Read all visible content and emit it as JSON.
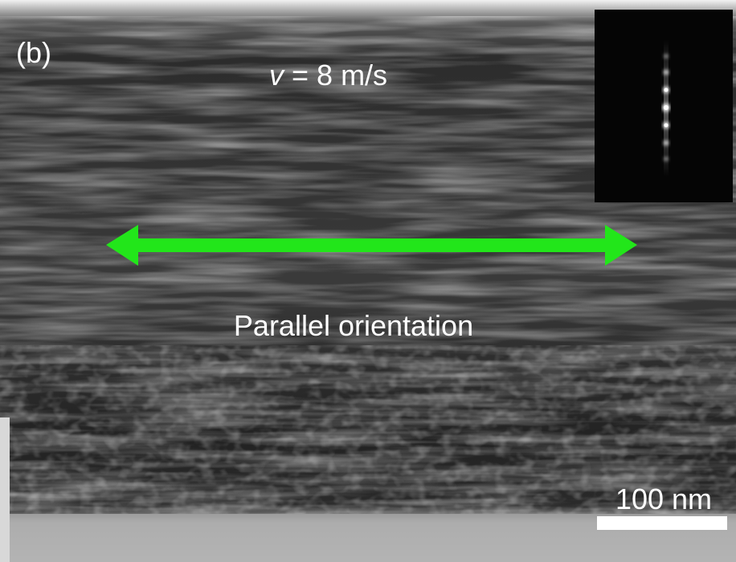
{
  "panel_label": "(b)",
  "velocity_label": {
    "variable": "v",
    "text": "= 8 m/s"
  },
  "annotation": "Parallel orientation",
  "scale_bar": {
    "label": "100 nm"
  }
}
